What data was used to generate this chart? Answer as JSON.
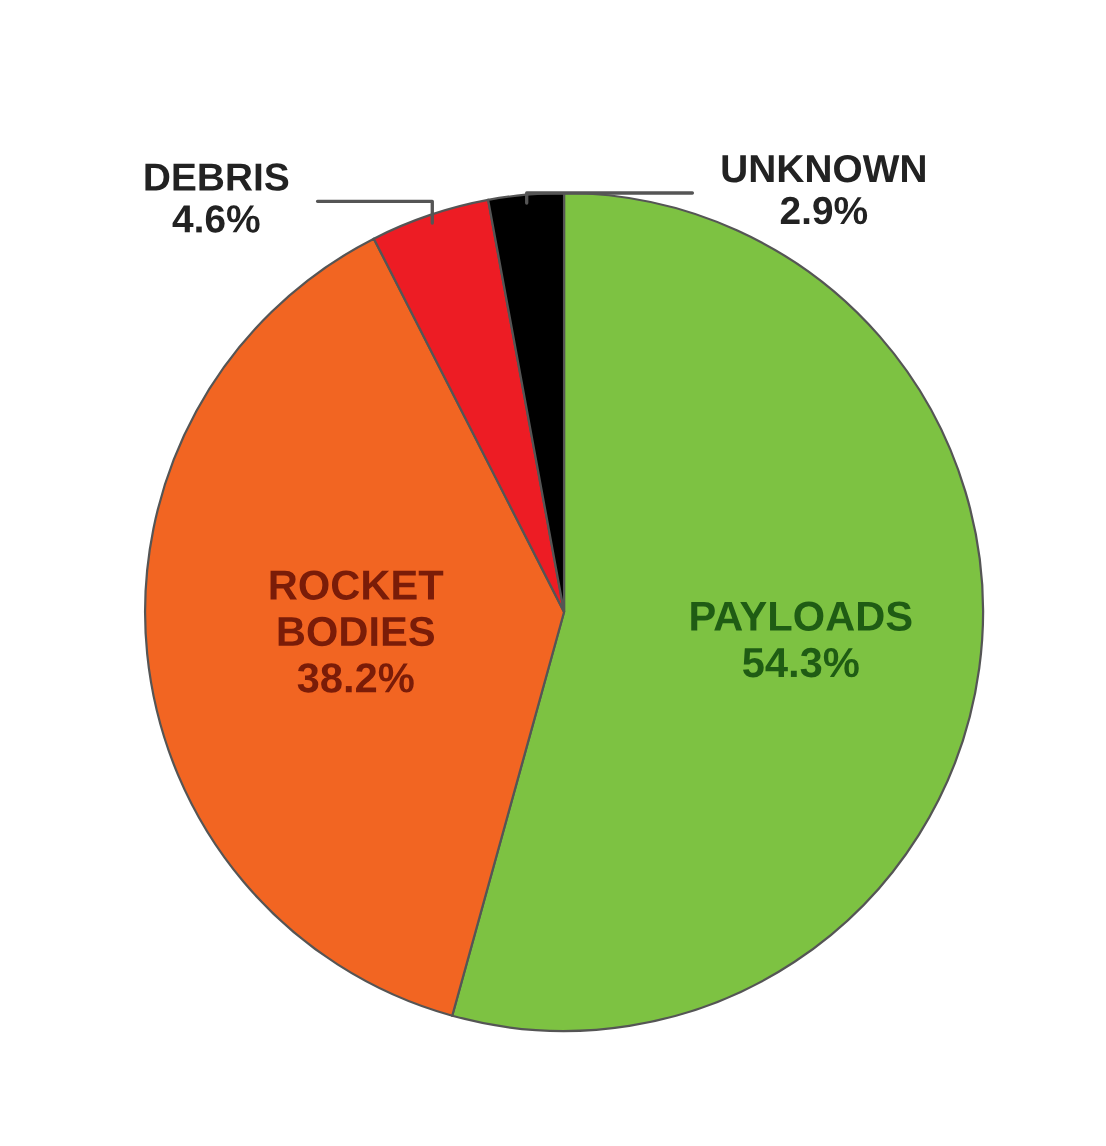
{
  "chart_data": {
    "type": "pie",
    "categories": [
      "PAYLOADS",
      "ROCKET BODIES",
      "DEBRIS",
      "UNKNOWN"
    ],
    "values": [
      54.3,
      38.2,
      4.6,
      2.9
    ],
    "value_labels": [
      "54.3%",
      "38.2%",
      "4.6%",
      "2.9%"
    ],
    "colors": [
      "#7dc242",
      "#f26522",
      "#ed1c24",
      "#000000"
    ]
  }
}
